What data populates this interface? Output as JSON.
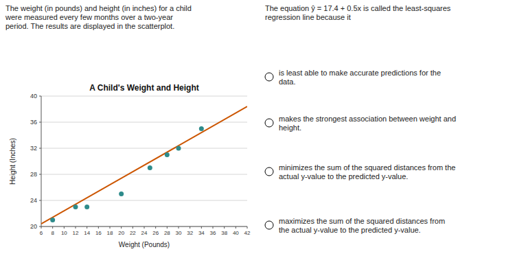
{
  "chart_data": {
    "type": "scatter",
    "title": "A Child's Weight and Height",
    "x_label": "Weight (Pounds)",
    "y_label": "Height (Inches)",
    "series": [
      {
        "type": "scatter",
        "color": "#2e8b8b",
        "marker": "circle",
        "x": [
          8,
          12,
          14,
          20,
          25,
          28,
          30,
          34
        ],
        "values": [
          21,
          23,
          23,
          25,
          29,
          31,
          32,
          35
        ]
      },
      {
        "type": "line",
        "color": "#cc5500",
        "line_style": "solid",
        "x": [
          6,
          42
        ],
        "values": [
          20.4,
          38.4
        ]
      }
    ],
    "xlim": [
      6,
      42
    ],
    "ylim": [
      20,
      40
    ],
    "xticks": [
      6,
      8,
      10,
      12,
      14,
      16,
      18,
      20,
      22,
      24,
      26,
      28,
      30,
      32,
      34,
      36,
      38,
      40,
      42
    ],
    "yticks": [
      20,
      24,
      28,
      32,
      36,
      40
    ],
    "grid": "y",
    "annotations": [
      "The weight (in pounds) and height (in inches) for a child\nwere measured every few months over a two-year\nperiod. The results are displayed in the scatterplot.",
      "The equation ŷ = 17.4 + 0.5x is called the least-squares\nregression line because it",
      "is least able to make accurate predictions for the\ndata.",
      "makes the strongest association between weight and\nheight.",
      "minimizes the sum of the squared distances from the\nactual y-value to the predicted y-value.",
      "maximizes the sum of the squared distances from\nthe actual y-value to the predicted y-value."
    ]
  }
}
